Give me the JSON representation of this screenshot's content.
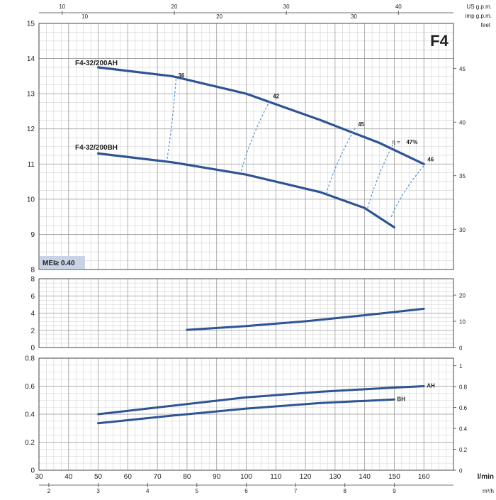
{
  "title": "F4",
  "badge": "MEI≥ 0.40",
  "top_axes": {
    "us_label": "US g.p.m.",
    "imp_label": "imp g.p.m.",
    "us_ticks": [
      10,
      20,
      30,
      40
    ],
    "imp_ticks": [
      10,
      20,
      30
    ]
  },
  "right_axis_head": "feet",
  "bottom_axes": {
    "lmin_label": "l/min",
    "m3h_label": "m³/h",
    "lmin_ticks": [
      30,
      40,
      50,
      60,
      70,
      80,
      90,
      100,
      110,
      120,
      130,
      140,
      150,
      160
    ],
    "m3h_ticks": [
      2,
      3,
      4,
      5,
      6,
      7,
      8,
      9
    ]
  },
  "chart_data": [
    {
      "type": "line",
      "panel": "head",
      "xlim": [
        30,
        170
      ],
      "ylim": [
        8,
        15
      ],
      "y_ticks": [
        8,
        9,
        10,
        11,
        12,
        13,
        14,
        15
      ],
      "right_ticks": [
        30,
        35,
        40,
        45
      ],
      "right_label": "feet",
      "series": [
        {
          "name": "F4-32/200AH",
          "x": [
            50,
            75,
            100,
            125,
            145,
            160
          ],
          "y": [
            13.75,
            13.5,
            13.0,
            12.25,
            11.6,
            11.0
          ]
        },
        {
          "name": "F4-32/200BH",
          "x": [
            50,
            75,
            100,
            125,
            140,
            150
          ],
          "y": [
            11.3,
            11.05,
            10.7,
            10.2,
            9.75,
            9.2
          ]
        }
      ],
      "efficiency_lines": [
        {
          "label": "36",
          "x": [
            73.3,
            76.3
          ],
          "y": [
            11.15,
            13.45
          ]
        },
        {
          "label": "42",
          "x": [
            98.3,
            108.3
          ],
          "y": [
            10.8,
            12.85
          ]
        },
        {
          "label": "45",
          "x": [
            127.0,
            137.0
          ],
          "y": [
            10.15,
            12.05
          ]
        },
        {
          "label": "47%",
          "x": [
            141.0,
            149.5
          ],
          "y": [
            9.75,
            11.55
          ]
        },
        {
          "label": "46",
          "x": [
            149.0,
            160.5
          ],
          "y": [
            9.5,
            11.0
          ]
        }
      ],
      "eta_label": "η ="
    },
    {
      "type": "line",
      "panel": "npsh",
      "xlim": [
        30,
        170
      ],
      "ylim": [
        0,
        8
      ],
      "y_ticks": [
        0,
        2,
        4,
        6,
        8
      ],
      "right_ticks": [
        0,
        10,
        20
      ],
      "series": [
        {
          "x": [
            80,
            100,
            120,
            140,
            160
          ],
          "y": [
            2.05,
            2.5,
            3.05,
            3.75,
            4.5
          ]
        }
      ]
    },
    {
      "type": "line",
      "panel": "power",
      "xlim": [
        30,
        170
      ],
      "ylim": [
        0,
        0.8
      ],
      "y_ticks": [
        0,
        0.2,
        0.4,
        0.6,
        0.8
      ],
      "right_ticks": [
        0,
        0.2,
        0.4,
        0.6,
        0.8,
        1
      ],
      "series": [
        {
          "name": "AH",
          "x": [
            50,
            75,
            100,
            125,
            150,
            160
          ],
          "y": [
            0.4,
            0.46,
            0.52,
            0.56,
            0.59,
            0.6
          ]
        },
        {
          "name": "BH",
          "x": [
            50,
            75,
            100,
            125,
            150
          ],
          "y": [
            0.335,
            0.39,
            0.44,
            0.48,
            0.505
          ]
        }
      ]
    }
  ]
}
